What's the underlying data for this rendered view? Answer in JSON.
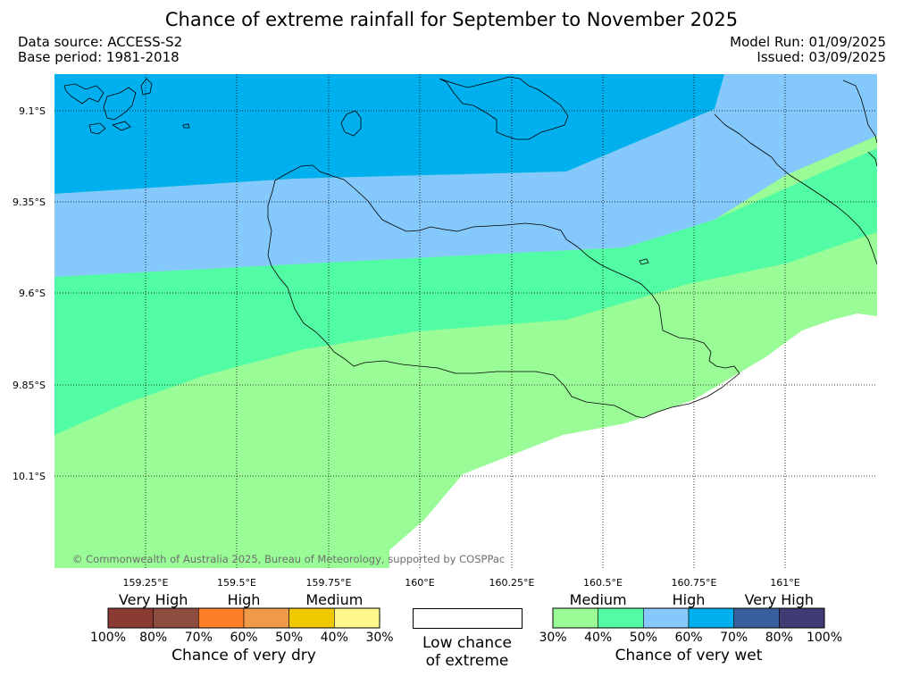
{
  "title": "Chance of extreme rainfall for September to November 2025",
  "meta": {
    "data_source": "Data source: ACCESS-S2",
    "base_period": "Base period: 1981-2018",
    "model_run": "Model Run: 01/09/2025",
    "issued": "Issued: 03/09/2025"
  },
  "map": {
    "lat_labels": [
      "9.1°S",
      "9.35°S",
      "9.6°S",
      "9.85°S",
      "10.1°S"
    ],
    "lon_labels": [
      "159.25°E",
      "159.5°E",
      "159.75°E",
      "160°E",
      "160.25°E",
      "160.5°E",
      "160.75°E",
      "161°E"
    ],
    "copyright": "© Commonwealth of Australia 2025, Bureau of Meteorology, supported by COSPPac",
    "colors": {
      "wet_70_80": "#00b0ee",
      "wet_60_70": "#85c8fb",
      "wet_40_50": "#52fca4",
      "wet_30_40": "#99fc96",
      "low": "#ffffff"
    }
  },
  "legend": {
    "dry": {
      "categories": [
        "Very High",
        "High",
        "Medium"
      ],
      "colors": [
        "#8b3a33",
        "#8e4e3f",
        "#fe7f26",
        "#f09b49",
        "#f0c800",
        "#fef78c"
      ],
      "ticks": [
        "100%",
        "80%",
        "70%",
        "60%",
        "50%",
        "40%",
        "30%"
      ],
      "title": "Chance of very dry"
    },
    "low": {
      "line1": "Low chance",
      "line2": "of extreme"
    },
    "wet": {
      "categories": [
        "Medium",
        "High",
        "Very High"
      ],
      "colors": [
        "#99fc96",
        "#52fca4",
        "#85c8fb",
        "#00b0ee",
        "#385f9c",
        "#403a75"
      ],
      "ticks": [
        "30%",
        "40%",
        "50%",
        "60%",
        "70%",
        "80%",
        "100%"
      ],
      "title": "Chance of very wet"
    }
  }
}
